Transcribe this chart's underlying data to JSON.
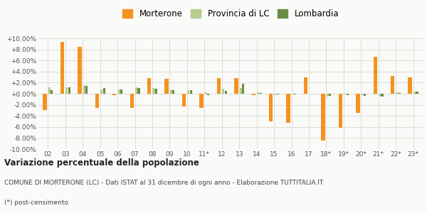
{
  "categories": [
    "02",
    "03",
    "04",
    "05",
    "06",
    "07",
    "08",
    "09",
    "10",
    "11*",
    "12",
    "13",
    "14",
    "15",
    "16",
    "17",
    "18*",
    "19*",
    "20*",
    "21*",
    "22*",
    "23*"
  ],
  "morterone": [
    -3.0,
    9.3,
    8.5,
    -2.5,
    -0.3,
    -2.5,
    2.8,
    2.7,
    -2.3,
    -2.6,
    2.8,
    2.8,
    -0.2,
    -5.0,
    -5.3,
    3.0,
    -8.5,
    -6.2,
    -3.4,
    6.7,
    3.2,
    3.0
  ],
  "provincia_lc": [
    1.1,
    1.2,
    1.5,
    0.8,
    0.8,
    1.1,
    1.0,
    0.8,
    0.7,
    0.2,
    0.9,
    1.0,
    0.2,
    -0.3,
    -0.1,
    0.0,
    -0.5,
    -0.1,
    -0.3,
    -0.4,
    0.3,
    0.4
  ],
  "lombardia": [
    0.7,
    1.1,
    1.4,
    1.0,
    0.8,
    1.0,
    0.9,
    0.7,
    0.6,
    -0.3,
    0.5,
    1.8,
    0.1,
    -0.1,
    -0.1,
    0.0,
    -0.4,
    -0.2,
    -0.4,
    -0.5,
    0.1,
    0.4
  ],
  "morterone_color": "#F5921E",
  "provincia_color": "#B5CC8E",
  "lombardia_color": "#6B8C45",
  "bg_color": "#FAFAF8",
  "grid_color": "#DDDDD5",
  "ylim": [
    -10,
    10
  ],
  "yticks": [
    -10,
    -8,
    -6,
    -4,
    -2,
    0,
    2,
    4,
    6,
    8,
    10
  ],
  "title_bold": "Variazione percentuale della popolazione",
  "subtitle1": "COMUNE DI MORTERONE (LC) - Dati ISTAT al 31 dicembre di ogni anno - Elaborazione TUTTITALIA.IT",
  "subtitle2": "(*) post-censimento",
  "legend_labels": [
    "Morterone",
    "Provincia di LC",
    "Lombardia"
  ]
}
